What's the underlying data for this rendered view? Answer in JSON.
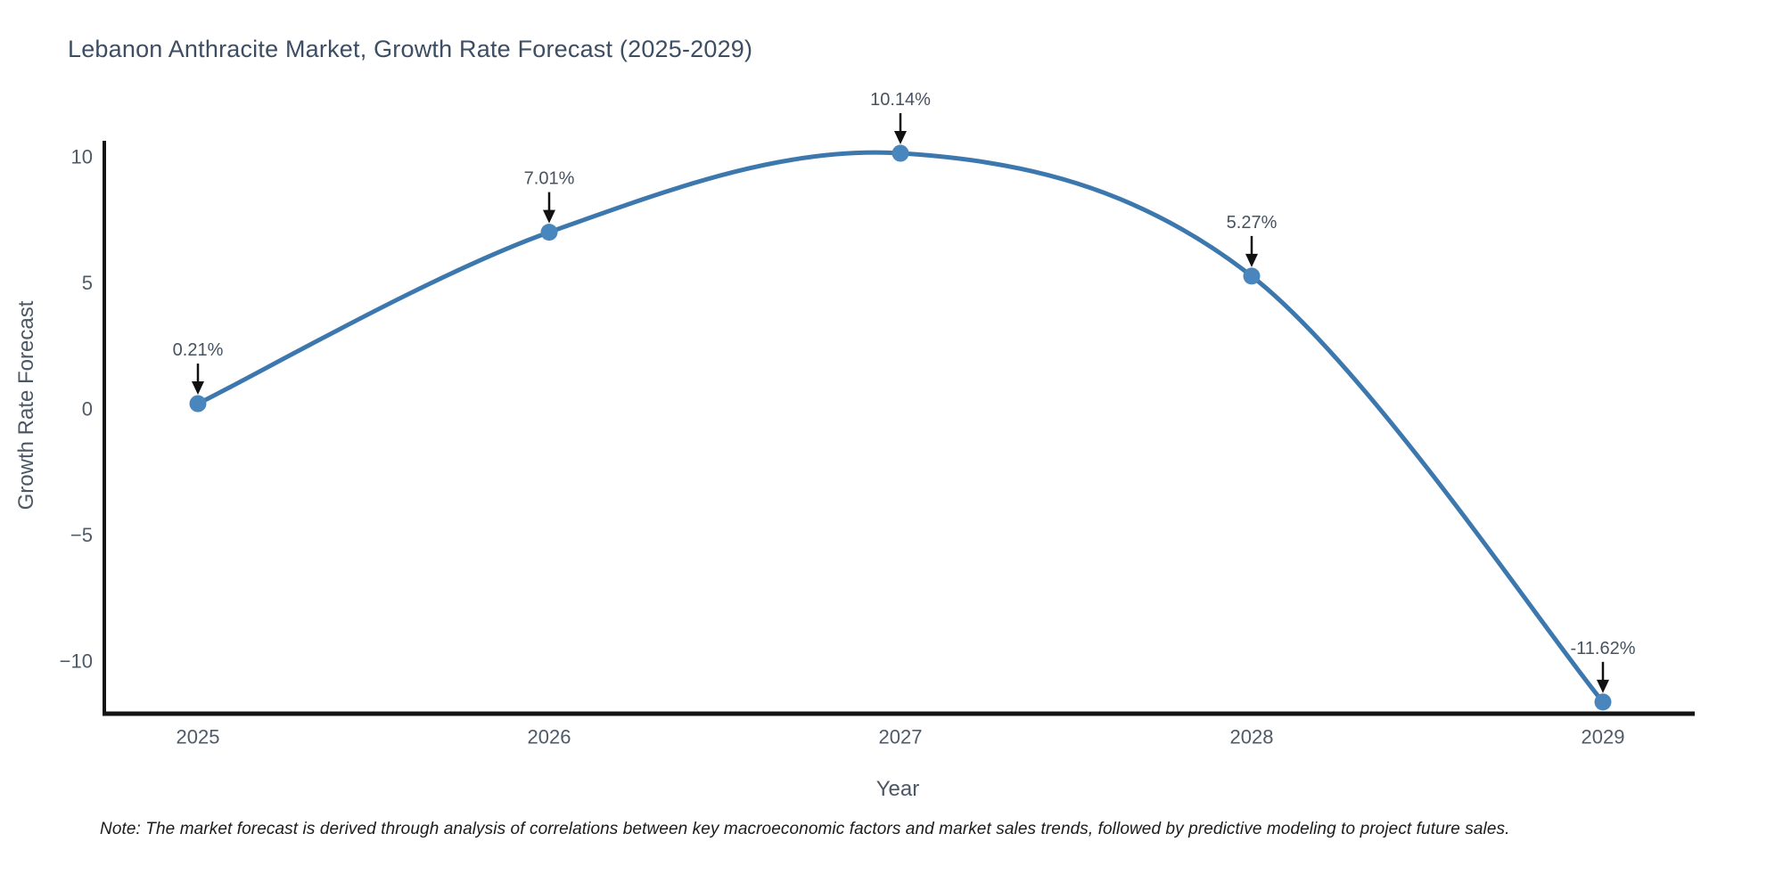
{
  "chart_data": {
    "type": "line",
    "title": "Lebanon Anthracite Market, Growth Rate Forecast (2025-2029)",
    "xlabel": "Year",
    "ylabel": "Growth Rate Forecast",
    "categories": [
      "2025",
      "2026",
      "2027",
      "2028",
      "2029"
    ],
    "values": [
      0.21,
      7.01,
      10.14,
      5.27,
      -11.62
    ],
    "point_labels": [
      "0.21%",
      "7.01%",
      "10.14%",
      "5.27%",
      "-11.62%"
    ],
    "yticks": [
      10,
      5,
      0,
      -5,
      -10
    ],
    "ylim": [
      -12.1,
      10.6
    ],
    "line_shape": "spline",
    "grid": false,
    "legend": false,
    "note": "Note: The market forecast is derived through analysis of correlations between key macroeconomic factors and market sales trends, followed by predictive modeling to project future sales.",
    "colors": {
      "line": "#3c78ae",
      "marker": "#4886bd",
      "axis": "#141414",
      "tick_label": "#4e5a67",
      "annotation_text": "#47525f",
      "annotation_arrow": "#111111",
      "title": "#3d4e63"
    }
  }
}
